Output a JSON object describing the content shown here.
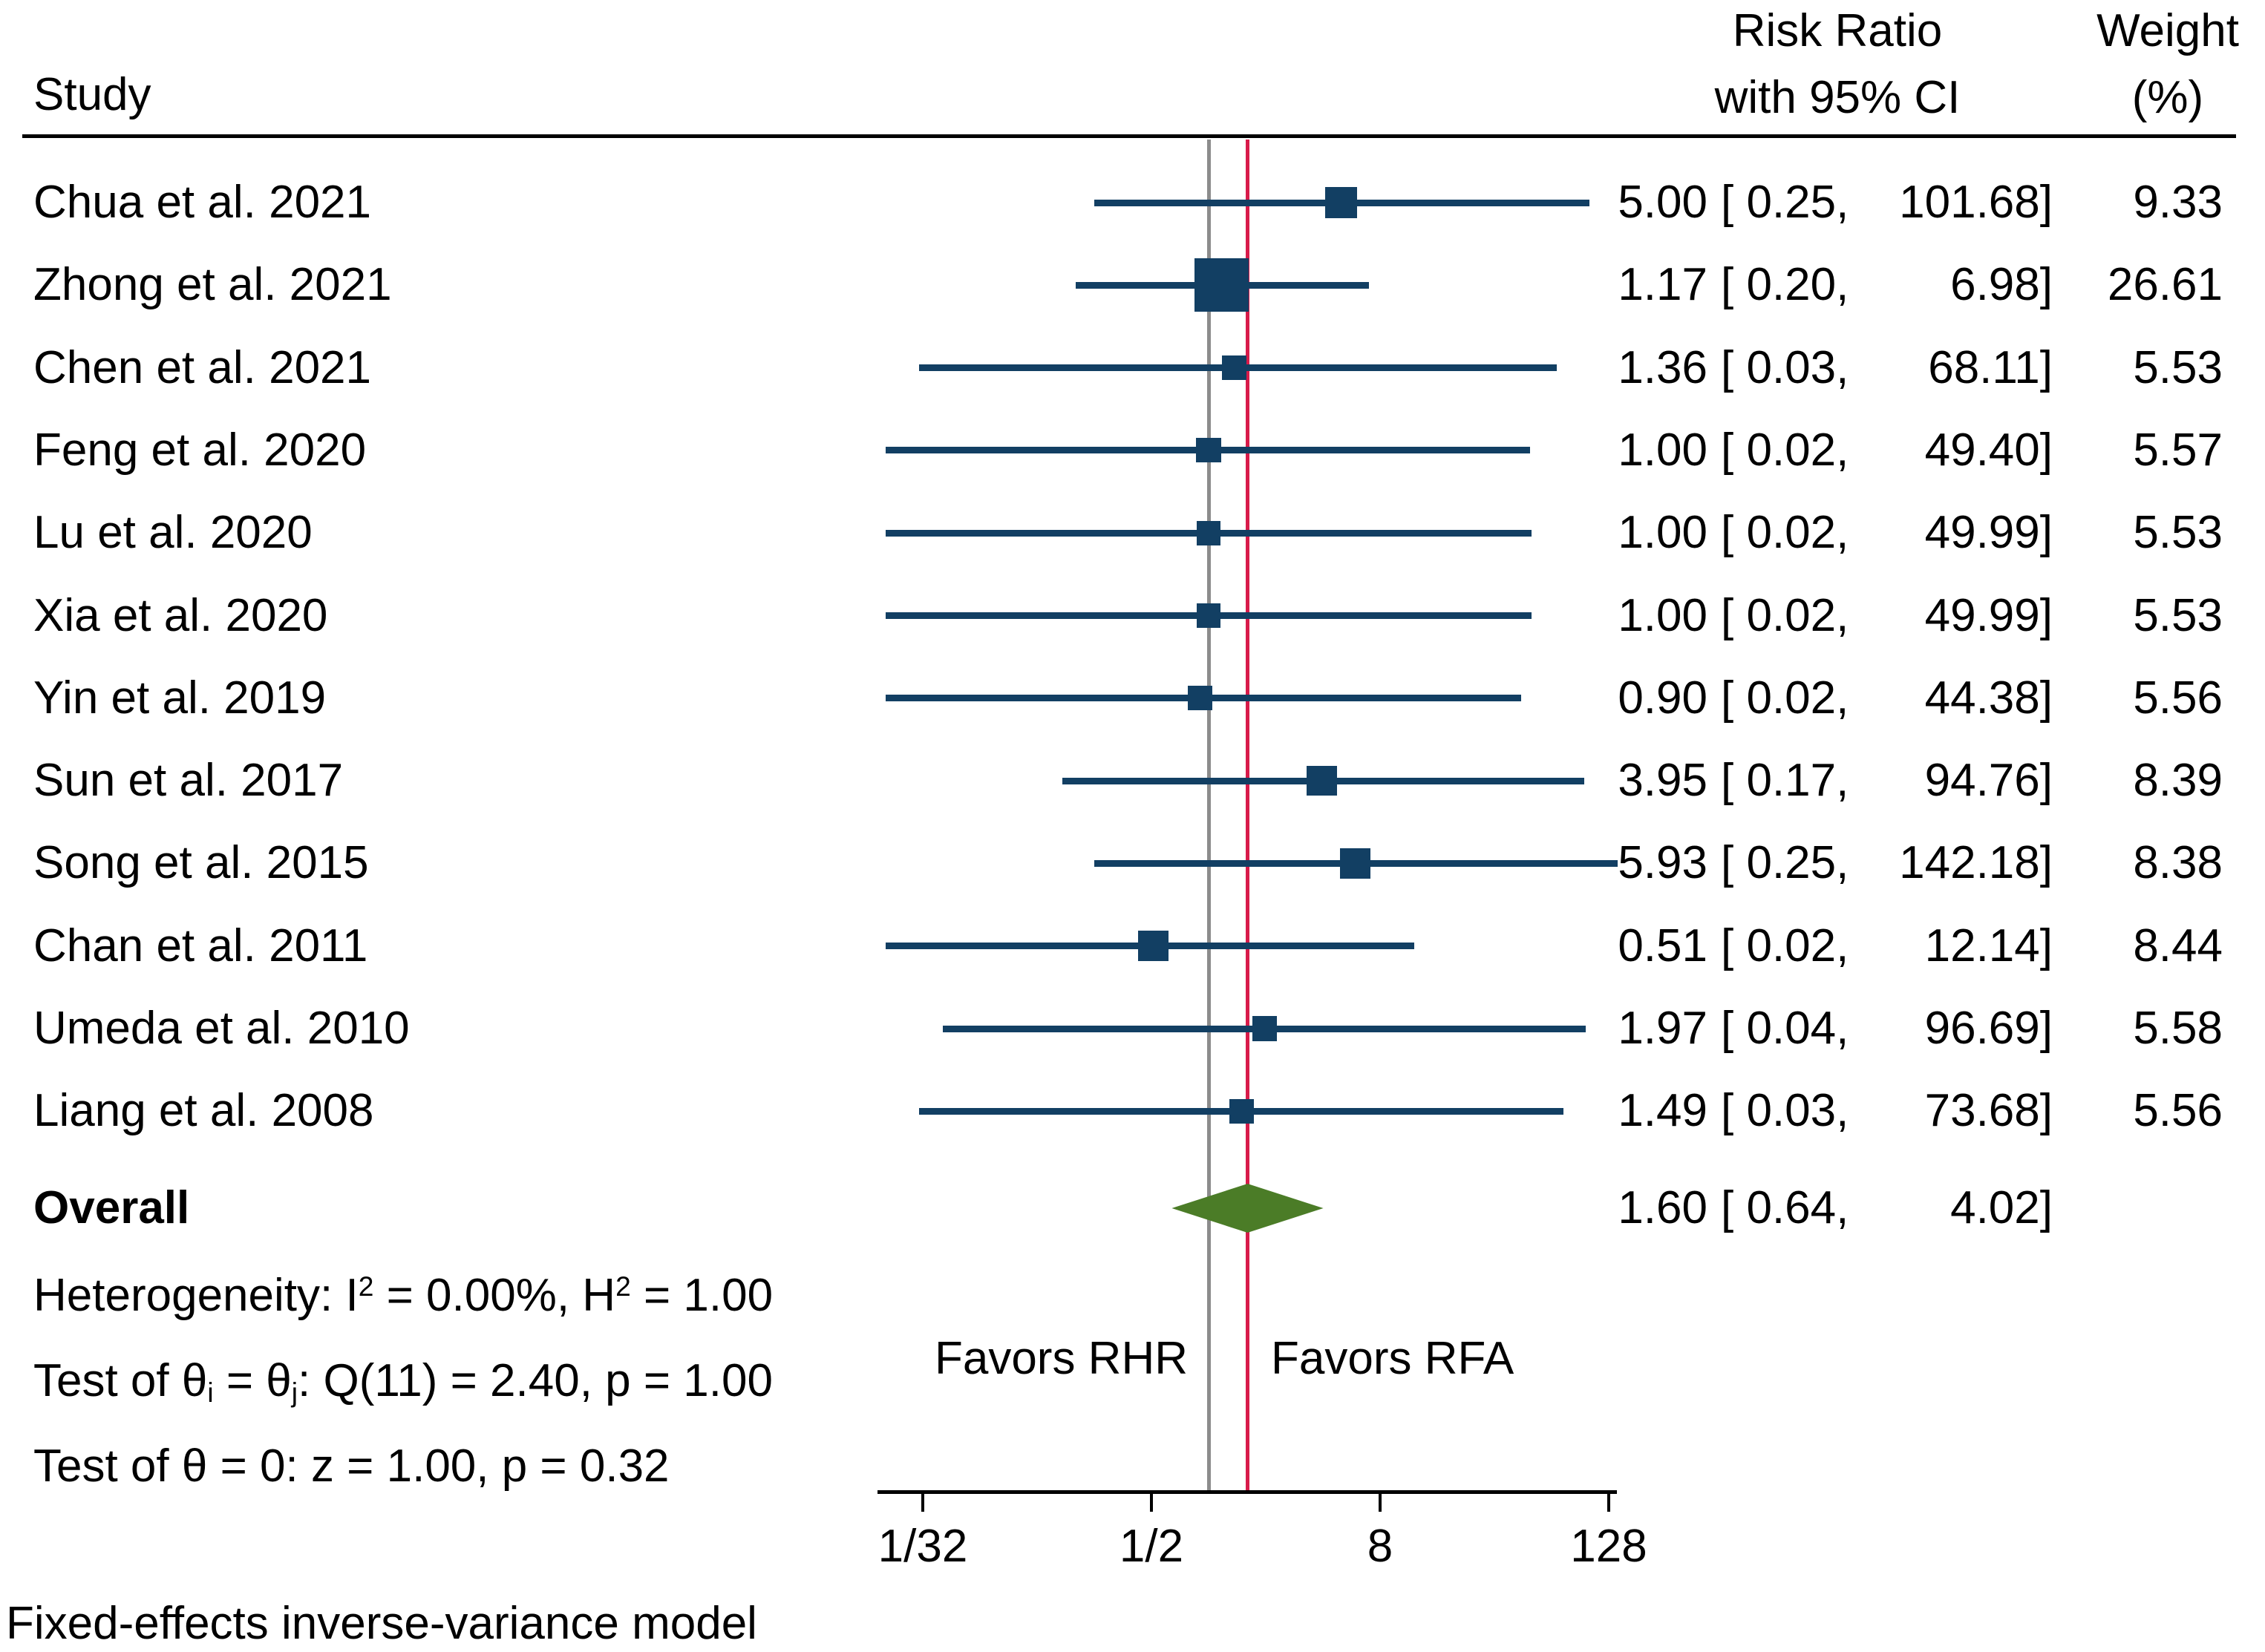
{
  "header": {
    "study": "Study",
    "rr_line1": "Risk Ratio",
    "rr_line2": "with 95% CI",
    "weight_line1": "Weight",
    "weight_line2": "(%)"
  },
  "chart_data": {
    "type": "forest",
    "x_scale": "log2",
    "x_axis_ticks": [
      {
        "label": "1/32",
        "value": 0.03125
      },
      {
        "label": "1/2",
        "value": 0.5
      },
      {
        "label": "8",
        "value": 8
      },
      {
        "label": "128",
        "value": 128
      }
    ],
    "ref_line_value": 1,
    "overall_line_value": 1.6,
    "favors_left": "Favors RHR",
    "favors_right": "Favors RFA",
    "studies": [
      {
        "name": "Chua et al. 2021",
        "est": 5.0,
        "lo": 0.25,
        "hi": 101.68,
        "weight": 9.33,
        "est_s": "5.00",
        "lo_s": "0.25",
        "hi_s": "101.68",
        "weight_s": "9.33"
      },
      {
        "name": "Zhong et al. 2021",
        "est": 1.17,
        "lo": 0.2,
        "hi": 6.98,
        "weight": 26.61,
        "est_s": "1.17",
        "lo_s": "0.20",
        "hi_s": "6.98",
        "weight_s": "26.61"
      },
      {
        "name": "Chen et al. 2021",
        "est": 1.36,
        "lo": 0.03,
        "hi": 68.11,
        "weight": 5.53,
        "est_s": "1.36",
        "lo_s": "0.03",
        "hi_s": "68.11",
        "weight_s": "5.53"
      },
      {
        "name": "Feng et al. 2020",
        "est": 1.0,
        "lo": 0.02,
        "hi": 49.4,
        "weight": 5.57,
        "est_s": "1.00",
        "lo_s": "0.02",
        "hi_s": "49.40",
        "weight_s": "5.57"
      },
      {
        "name": "Lu et al. 2020",
        "est": 1.0,
        "lo": 0.02,
        "hi": 49.99,
        "weight": 5.53,
        "est_s": "1.00",
        "lo_s": "0.02",
        "hi_s": "49.99",
        "weight_s": "5.53"
      },
      {
        "name": "Xia et al. 2020",
        "est": 1.0,
        "lo": 0.02,
        "hi": 49.99,
        "weight": 5.53,
        "est_s": "1.00",
        "lo_s": "0.02",
        "hi_s": "49.99",
        "weight_s": "5.53"
      },
      {
        "name": "Yin et al. 2019",
        "est": 0.9,
        "lo": 0.02,
        "hi": 44.38,
        "weight": 5.56,
        "est_s": "0.90",
        "lo_s": "0.02",
        "hi_s": "44.38",
        "weight_s": "5.56"
      },
      {
        "name": "Sun et al. 2017",
        "est": 3.95,
        "lo": 0.17,
        "hi": 94.76,
        "weight": 8.39,
        "est_s": "3.95",
        "lo_s": "0.17",
        "hi_s": "94.76",
        "weight_s": "8.39"
      },
      {
        "name": "Song et al. 2015",
        "est": 5.93,
        "lo": 0.25,
        "hi": 142.18,
        "weight": 8.38,
        "est_s": "5.93",
        "lo_s": "0.25",
        "hi_s": "142.18",
        "weight_s": "8.38"
      },
      {
        "name": "Chan et al. 2011",
        "est": 0.51,
        "lo": 0.02,
        "hi": 12.14,
        "weight": 8.44,
        "est_s": "0.51",
        "lo_s": "0.02",
        "hi_s": "12.14",
        "weight_s": "8.44"
      },
      {
        "name": "Umeda et al. 2010",
        "est": 1.97,
        "lo": 0.04,
        "hi": 96.69,
        "weight": 5.58,
        "est_s": "1.97",
        "lo_s": "0.04",
        "hi_s": "96.69",
        "weight_s": "5.58"
      },
      {
        "name": "Liang et al. 2008",
        "est": 1.49,
        "lo": 0.03,
        "hi": 73.68,
        "weight": 5.56,
        "est_s": "1.49",
        "lo_s": "0.03",
        "hi_s": "73.68",
        "weight_s": "5.56"
      }
    ],
    "overall": {
      "name": "Overall",
      "est": 1.6,
      "lo": 0.64,
      "hi": 4.02,
      "est_s": "1.60",
      "lo_s": "0.64",
      "hi_s": "4.02"
    },
    "stats_lines": [
      [
        {
          "t": "Heterogeneity: I"
        },
        {
          "t": "2",
          "s": "sup"
        },
        {
          "t": " = 0.00%, H"
        },
        {
          "t": "2",
          "s": "sup"
        },
        {
          "t": " = 1.00"
        }
      ],
      [
        {
          "t": "Test of "
        },
        {
          "t": "θ"
        },
        {
          "t": "i",
          "s": "sub"
        },
        {
          "t": " = "
        },
        {
          "t": "θ"
        },
        {
          "t": "j",
          "s": "sub"
        },
        {
          "t": ": Q(11) = 2.40, p = 1.00"
        }
      ],
      [
        {
          "t": "Test of "
        },
        {
          "t": "θ"
        },
        {
          "t": " = 0: z = 1.00, p = 0.32"
        }
      ]
    ],
    "footnote": "Fixed-effects inverse-variance model",
    "colors": {
      "marker": "#123f63",
      "ci_line": "#123f63",
      "ref_line": "#8c8c8c",
      "overall_line": "#d81b4a",
      "diamond": "#4b7c27",
      "text": "#000000"
    }
  }
}
